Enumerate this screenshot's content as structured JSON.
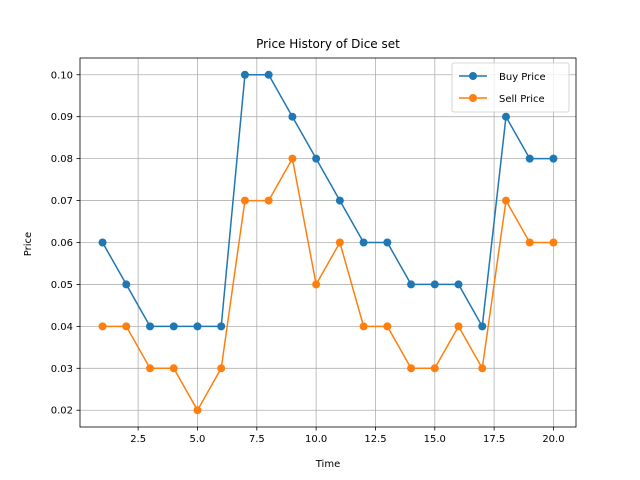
{
  "chart_data": {
    "type": "line",
    "title": "Price History of Dice set",
    "xlabel": "Time",
    "ylabel": "Price",
    "xlim": [
      0.05,
      20.95
    ],
    "ylim": [
      0.016,
      0.104
    ],
    "xticks": [
      2.5,
      5.0,
      7.5,
      10.0,
      12.5,
      15.0,
      17.5,
      20.0
    ],
    "xtick_labels": [
      "2.5",
      "5.0",
      "7.5",
      "10.0",
      "12.5",
      "15.0",
      "17.5",
      "20.0"
    ],
    "yticks": [
      0.02,
      0.03,
      0.04,
      0.05,
      0.06,
      0.07,
      0.08,
      0.09,
      0.1
    ],
    "ytick_labels": [
      "0.02",
      "0.03",
      "0.04",
      "0.05",
      "0.06",
      "0.07",
      "0.08",
      "0.09",
      "0.10"
    ],
    "grid": true,
    "legend_position": "top-right",
    "x": [
      1,
      2,
      3,
      4,
      5,
      6,
      7,
      8,
      9,
      10,
      11,
      12,
      13,
      14,
      15,
      16,
      17,
      18,
      19,
      20
    ],
    "series": [
      {
        "name": "Buy Price",
        "color": "#1f77b4",
        "values": [
          0.06,
          0.05,
          0.04,
          0.04,
          0.04,
          0.04,
          0.1,
          0.1,
          0.09,
          0.08,
          0.07,
          0.06,
          0.06,
          0.05,
          0.05,
          0.05,
          0.04,
          0.09,
          0.08,
          0.08
        ]
      },
      {
        "name": "Sell Price",
        "color": "#ff7f0e",
        "values": [
          0.04,
          0.04,
          0.03,
          0.03,
          0.02,
          0.03,
          0.07,
          0.07,
          0.08,
          0.05,
          0.06,
          0.04,
          0.04,
          0.03,
          0.03,
          0.04,
          0.03,
          0.07,
          0.06,
          0.06
        ]
      }
    ]
  }
}
